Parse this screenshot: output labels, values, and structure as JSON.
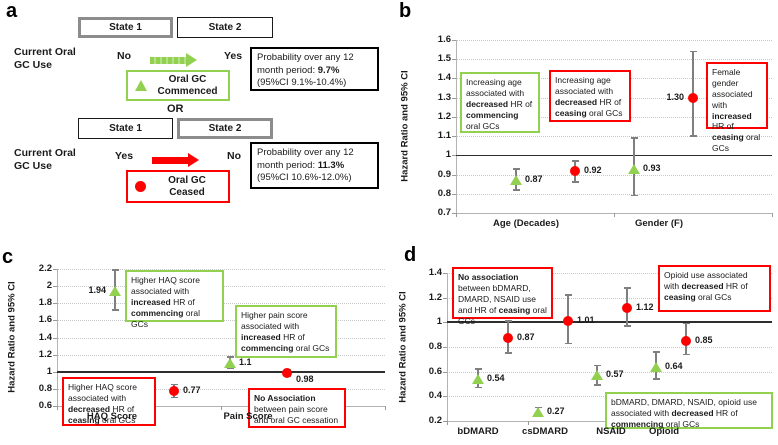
{
  "panel_letters": {
    "a": "a",
    "b": "b",
    "c": "c",
    "d": "d"
  },
  "colors": {
    "commenced_green": "#92d050",
    "ceased_red": "#ff0000",
    "error_bar_gray": "#7f7f7f",
    "green": "#92d050",
    "red": "#ff0000"
  },
  "panel_a": {
    "states_top": [
      "State 1",
      "State 2"
    ],
    "states_bottom": [
      "State 1",
      "State 2"
    ],
    "row1_label": "Current Oral GC Use",
    "row2_label": "Current Oral GC Use",
    "flow1_from": "No",
    "flow1_to": "Yes",
    "legend1": "Oral GC Commenced",
    "or_label": "OR",
    "flow2_from": "Yes",
    "flow2_to": "No",
    "legend2": "Oral GC Ceased",
    "prob1": "Probability over any 12 month period: **9.7%** (95%CI 9.1%-10.4%)",
    "prob2": "Probability over any  12 month period: **11.3%** (95%CI 10.6%-12.0%)"
  },
  "chart_data": [
    {
      "id": "b",
      "type": "scatter",
      "ylabel": "Hazard Ratio and 95% CI",
      "ylim": [
        0.7,
        1.6
      ],
      "yticks": [
        "1.6",
        "1.5",
        "1.4",
        "1.3",
        "1.2",
        "1.1",
        "1",
        "0.9",
        "0.8",
        "0.7"
      ],
      "baseline": 1,
      "grid": true,
      "categories": [
        "Age (Decades)",
        "Gender (F)"
      ],
      "points": [
        {
          "category": "Age (Decades)",
          "series": "Oral GC Commenced",
          "marker": "triangle",
          "value": 0.87,
          "ci_low": 0.82,
          "ci_high": 0.93,
          "label": "0.87",
          "label_side": "right"
        },
        {
          "category": "Age (Decades)",
          "series": "Oral GC Ceased",
          "marker": "circle",
          "value": 0.92,
          "ci_low": 0.86,
          "ci_high": 0.97,
          "label": "0.92",
          "label_side": "right"
        },
        {
          "category": "Gender (F)",
          "series": "Oral GC Commenced",
          "marker": "triangle",
          "value": 0.93,
          "ci_low": 0.79,
          "ci_high": 1.09,
          "label": "0.93",
          "label_side": "right"
        },
        {
          "category": "Gender (F)",
          "series": "Oral GC Ceased",
          "marker": "circle",
          "value": 1.3,
          "ci_low": 1.1,
          "ci_high": 1.54,
          "label": "1.30",
          "label_side": "left"
        }
      ],
      "annotations": [
        {
          "color": "green",
          "text": "Increasing age associated with **decreased** HR of **commencing** oral GCs"
        },
        {
          "color": "red",
          "text": "Increasing age associated with **decreased** HR of **ceasing** oral GCs"
        },
        {
          "color": "red",
          "text": "Female gender associated with **increased** HR of **ceasing** oral GCs"
        }
      ]
    },
    {
      "id": "c",
      "type": "scatter",
      "ylabel": "Hazard Ratio and 95% CI",
      "ylim": [
        0.6,
        2.2
      ],
      "yticks": [
        "2.2",
        "2",
        "1.8",
        "1.6",
        "1.4",
        "1.2",
        "1",
        "0.8",
        "0.6"
      ],
      "baseline": 1,
      "grid": true,
      "categories": [
        "HAQ Score",
        "Pain Score"
      ],
      "points": [
        {
          "category": "HAQ Score",
          "series": "Oral GC Commenced",
          "marker": "triangle",
          "value": 1.94,
          "ci_low": 1.72,
          "ci_high": 2.19,
          "label": "1.94",
          "label_side": "left"
        },
        {
          "category": "HAQ Score",
          "series": "Oral GC Ceased",
          "marker": "circle",
          "value": 0.77,
          "ci_low": 0.7,
          "ci_high": 0.85,
          "label": "0.77",
          "label_side": "right"
        },
        {
          "category": "Pain Score",
          "series": "Oral GC Commenced",
          "marker": "triangle",
          "value": 1.1,
          "ci_low": 1.04,
          "ci_high": 1.17,
          "label": "1.1",
          "label_side": "right"
        },
        {
          "category": "Pain Score",
          "series": "Oral GC Ceased",
          "marker": "circle",
          "value": 0.98,
          "ci_low": 0.95,
          "ci_high": 1.02,
          "label": "0.98",
          "label_side": "right"
        }
      ],
      "annotations": [
        {
          "color": "green",
          "text": "Higher HAQ score associated with **increased** HR of **commencing** oral GCs"
        },
        {
          "color": "green",
          "text": "Higher pain score associated with **increased** HR of **commencing** oral GCs"
        },
        {
          "color": "red",
          "text": "Higher HAQ score associated with **decreased** HR of **ceasing** oral GCs"
        },
        {
          "color": "red",
          "text": "**No Association** between pain score and oral GC cessation"
        }
      ]
    },
    {
      "id": "d",
      "type": "scatter",
      "ylabel": "Hazard Ratio and 95% CI",
      "ylim": [
        0.2,
        1.4
      ],
      "yticks": [
        "1.4",
        "1.2",
        "1",
        "0.8",
        "0.6",
        "0.4",
        "0.2"
      ],
      "baseline": 1,
      "grid": true,
      "categories": [
        "bDMARD",
        "csDMARD",
        "NSAID",
        "Opioid"
      ],
      "points": [
        {
          "category": "bDMARD",
          "series": "Oral GC Commenced",
          "marker": "triangle",
          "value": 0.54,
          "ci_low": 0.47,
          "ci_high": 0.62,
          "label": "0.54",
          "label_side": "right"
        },
        {
          "category": "bDMARD",
          "series": "Oral GC Ceased",
          "marker": "circle",
          "value": 0.87,
          "ci_low": 0.75,
          "ci_high": 1.01,
          "label": "0.87",
          "label_side": "right"
        },
        {
          "category": "csDMARD",
          "series": "Oral GC Commenced",
          "marker": "triangle",
          "value": 0.27,
          "ci_low": 0.24,
          "ci_high": 0.31,
          "label": "0.27",
          "label_side": "right"
        },
        {
          "category": "csDMARD",
          "series": "Oral GC Ceased",
          "marker": "circle",
          "value": 1.01,
          "ci_low": 0.83,
          "ci_high": 1.22,
          "label": "1.01",
          "label_side": "right"
        },
        {
          "category": "NSAID",
          "series": "Oral GC Commenced",
          "marker": "triangle",
          "value": 0.57,
          "ci_low": 0.49,
          "ci_high": 0.65,
          "label": "0.57",
          "label_side": "right"
        },
        {
          "category": "NSAID",
          "series": "Oral GC Ceased",
          "marker": "circle",
          "value": 1.12,
          "ci_low": 0.97,
          "ci_high": 1.28,
          "label": "1.12",
          "label_side": "right"
        },
        {
          "category": "Opioid",
          "series": "Oral GC Commenced",
          "marker": "triangle",
          "value": 0.64,
          "ci_low": 0.54,
          "ci_high": 0.76,
          "label": "0.64",
          "label_side": "right"
        },
        {
          "category": "Opioid",
          "series": "Oral GC Ceased",
          "marker": "circle",
          "value": 0.85,
          "ci_low": 0.74,
          "ci_high": 0.99,
          "label": "0.85",
          "label_side": "right"
        }
      ],
      "annotations": [
        {
          "color": "red",
          "text": "**No association** between bDMARD, DMARD, NSAID use and HR of **ceasing** oral GCs"
        },
        {
          "color": "red",
          "text": "Opioid use associated with **decreased** HR of **ceasing** oral GCs"
        },
        {
          "color": "green",
          "text": "bDMARD, DMARD, NSAID, opioid use associated with **decreased** HR of **commencing** oral GCs"
        }
      ]
    }
  ]
}
